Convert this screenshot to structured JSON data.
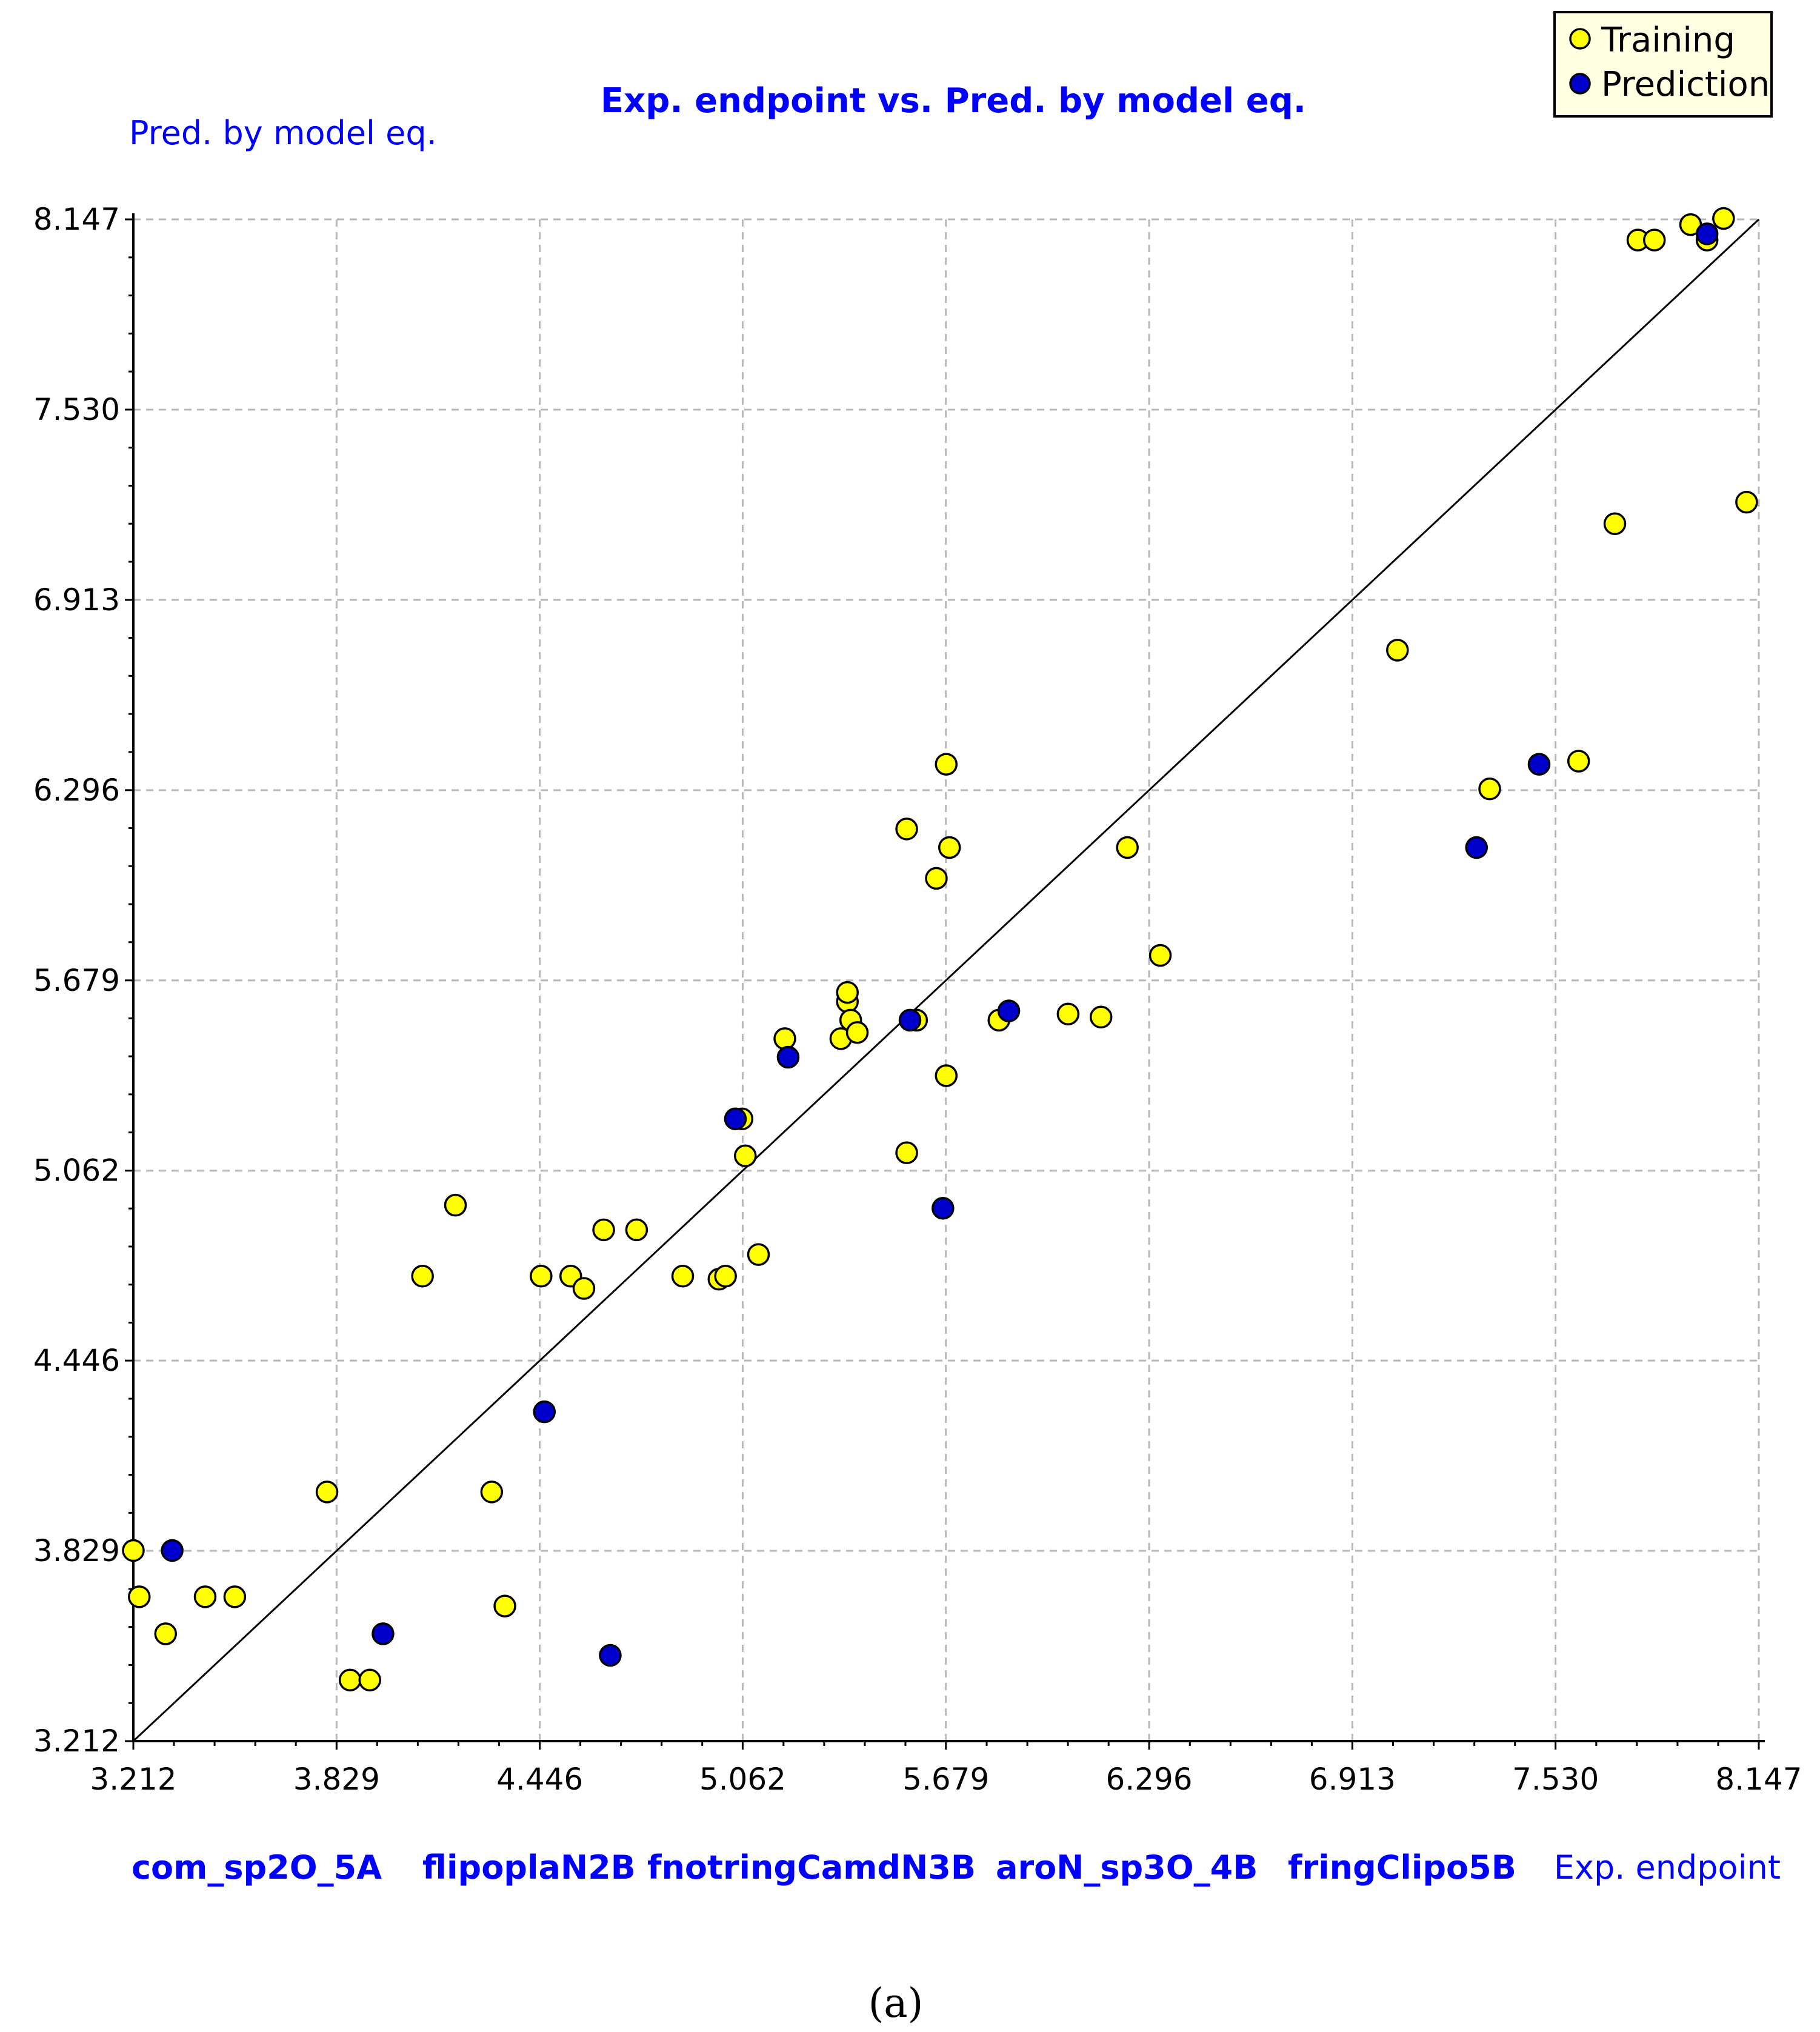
{
  "chart_data": {
    "type": "scatter",
    "title": "Exp. endpoint vs. Pred. by model eq.",
    "xlabel": "Exp. endpoint",
    "ylabel": "Pred. by model eq.",
    "descriptors": [
      "com_sp2O_5A",
      "flipoplaN2B",
      "fnotringCamdN3B",
      "aroN_sp3O_4B",
      "fringClipo5B"
    ],
    "xlim": [
      3.212,
      8.147
    ],
    "ylim": [
      3.212,
      8.147
    ],
    "x_ticks": [
      "3.212",
      "3.829",
      "4.446",
      "5.062",
      "5.679",
      "6.296",
      "6.913",
      "7.530",
      "8.147"
    ],
    "y_ticks": [
      "3.212",
      "3.829",
      "4.446",
      "5.062",
      "5.679",
      "6.296",
      "6.913",
      "7.530",
      "8.147"
    ],
    "grid": true,
    "legend_position": "top-right",
    "reference_line": {
      "from": [
        3.212,
        3.212
      ],
      "to": [
        8.147,
        8.147
      ]
    },
    "series": [
      {
        "name": "Training",
        "color": "#ffff00",
        "points": [
          [
            3.212,
            3.83
          ],
          [
            3.23,
            3.68
          ],
          [
            3.31,
            3.56
          ],
          [
            3.43,
            3.68
          ],
          [
            3.52,
            3.68
          ],
          [
            3.8,
            4.02
          ],
          [
            3.87,
            3.41
          ],
          [
            3.93,
            3.41
          ],
          [
            4.09,
            4.72
          ],
          [
            4.19,
            4.95
          ],
          [
            4.3,
            4.02
          ],
          [
            4.34,
            3.65
          ],
          [
            4.45,
            4.72
          ],
          [
            4.54,
            4.72
          ],
          [
            4.58,
            4.68
          ],
          [
            4.64,
            4.87
          ],
          [
            4.74,
            4.87
          ],
          [
            4.88,
            4.72
          ],
          [
            4.99,
            4.71
          ],
          [
            5.01,
            4.72
          ],
          [
            5.06,
            5.23
          ],
          [
            5.07,
            5.11
          ],
          [
            5.11,
            4.79
          ],
          [
            5.19,
            5.49
          ],
          [
            5.36,
            5.49
          ],
          [
            5.38,
            5.61
          ],
          [
            5.39,
            5.55
          ],
          [
            5.41,
            5.51
          ],
          [
            5.38,
            5.64
          ],
          [
            5.56,
            6.17
          ],
          [
            5.56,
            5.12
          ],
          [
            5.59,
            5.55
          ],
          [
            5.65,
            6.01
          ],
          [
            5.68,
            6.38
          ],
          [
            5.69,
            6.11
          ],
          [
            5.68,
            5.37
          ],
          [
            5.84,
            5.55
          ],
          [
            6.05,
            5.57
          ],
          [
            6.15,
            5.56
          ],
          [
            6.23,
            6.11
          ],
          [
            6.33,
            5.76
          ],
          [
            7.05,
            6.75
          ],
          [
            7.33,
            6.3
          ],
          [
            7.6,
            6.39
          ],
          [
            7.71,
            7.16
          ],
          [
            7.78,
            8.08
          ],
          [
            7.83,
            8.08
          ],
          [
            7.94,
            8.13
          ],
          [
            7.99,
            8.08
          ],
          [
            8.04,
            8.15
          ],
          [
            8.11,
            7.23
          ]
        ]
      },
      {
        "name": "Prediction",
        "color": "#0000cc",
        "points": [
          [
            3.33,
            3.83
          ],
          [
            3.97,
            3.56
          ],
          [
            4.46,
            4.28
          ],
          [
            4.66,
            3.49
          ],
          [
            5.04,
            5.23
          ],
          [
            5.2,
            5.43
          ],
          [
            5.57,
            5.55
          ],
          [
            5.67,
            4.94
          ],
          [
            5.87,
            5.58
          ],
          [
            7.29,
            6.11
          ],
          [
            7.48,
            6.38
          ],
          [
            7.99,
            8.1
          ]
        ]
      }
    ]
  },
  "caption": "(a)"
}
